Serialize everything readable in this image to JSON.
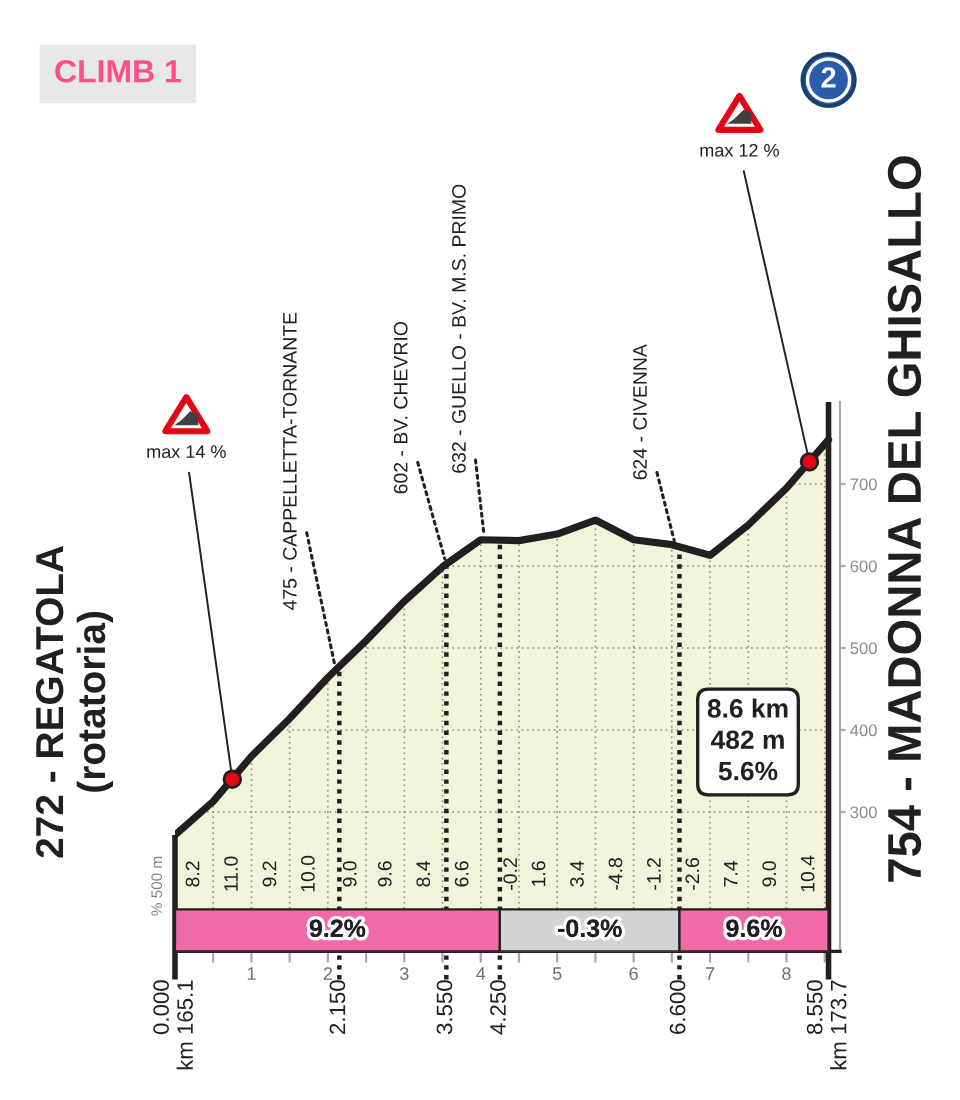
{
  "chart_data": {
    "type": "area",
    "title": "CLIMB 1",
    "x": [
      0,
      0.5,
      1,
      1.5,
      2,
      2.5,
      3,
      3.5,
      4,
      4.5,
      5,
      5.5,
      6,
      6.5,
      7,
      7.5,
      8,
      8.55
    ],
    "series": [
      {
        "color": "#f1f4da",
        "values": [
          272,
          313,
          368,
          414,
          464,
          509,
          557,
          599,
          632,
          631,
          639,
          656,
          632,
          626,
          613,
          650,
          695,
          754
        ]
      }
    ],
    "xlim": [
      0,
      8.7
    ],
    "ylim": [
      130,
      800
    ],
    "xticks": [
      {
        "value": 0.5,
        "label": null
      },
      1,
      {
        "value": 1.5,
        "label": null
      },
      2,
      {
        "value": 2.5,
        "label": null
      },
      3,
      {
        "value": 3.5,
        "label": null
      },
      4,
      {
        "value": 4.5,
        "label": null
      },
      5,
      {
        "value": 5.5,
        "label": null
      },
      6,
      {
        "value": 6.5,
        "label": null
      },
      7,
      {
        "value": 7.5,
        "label": null
      },
      8,
      {
        "value": 8.5,
        "label": null
      }
    ],
    "yticks": [
      300,
      400,
      500,
      600,
      700
    ],
    "grid": true,
    "ref_lines": [
      {
        "axis": "x",
        "value": 0,
        "label": "0.000\nkm 165.1",
        "line_style": "solid",
        "color": "#231f20"
      },
      {
        "axis": "x",
        "value": 2.15,
        "label": "2.150",
        "line_style": "dotted",
        "color": "#231f20"
      },
      {
        "axis": "x",
        "value": 3.55,
        "label": "3.550",
        "line_style": "dotted",
        "color": "#231f20"
      },
      {
        "axis": "x",
        "value": 4.25,
        "label": "4.250",
        "line_style": "dotted",
        "color": "#231f20"
      },
      {
        "axis": "x",
        "value": 6.6,
        "label": "6.600",
        "line_style": "dotted",
        "color": "#231f20"
      },
      {
        "axis": "x",
        "value": 8.55,
        "label": "8.550\nkm 173.7",
        "line_style": "solid",
        "color": "#231f20"
      }
    ],
    "bands": [
      {
        "axis": "x",
        "from": 0,
        "to": 4.25,
        "label": "9.2%",
        "color": "#ef6aa8"
      },
      {
        "axis": "x",
        "from": 4.25,
        "to": 6.6,
        "label": "-0.3%",
        "color": "#d1d3d4"
      },
      {
        "axis": "x",
        "from": 6.6,
        "to": 8.55,
        "label": "9.6%",
        "color": "#ef6aa8"
      }
    ],
    "annotations": [
      {
        "text": "272 - REGATOLA\n(rotatoria)",
        "x": 0,
        "y": 272
      },
      {
        "text": "754 - MADONNA DEL GHISALLO",
        "x": 8.55,
        "y": 754
      },
      {
        "text": "475 - CAPPELLETTA-TORNANTE",
        "x": 2.1,
        "y": 475
      },
      {
        "text": "602 - BV. CHEVRIO",
        "x": 3.55,
        "y": 602
      },
      {
        "text": "632 - GUELLO - BV. M.S. PRIMO",
        "x": 4.05,
        "y": 632
      },
      {
        "text": "624 - CIVENNA",
        "x": 6.55,
        "y": 624
      },
      {
        "text": "max 14 %",
        "x": 0.75,
        "y": 340
      },
      {
        "text": "max 12 %",
        "x": 8.3,
        "y": 727
      },
      "% 500 m",
      "8.6 km\n482 m\n5.6%",
      "2",
      "8.2",
      "11.0",
      "9.2",
      "10.0",
      "9.0",
      "9.6",
      "8.4",
      "6.6",
      "-0.2",
      "1.6",
      "3.4",
      "-4.8",
      "-1.2",
      "-2.6",
      "7.4",
      "9.0",
      "10.4"
    ]
  }
}
